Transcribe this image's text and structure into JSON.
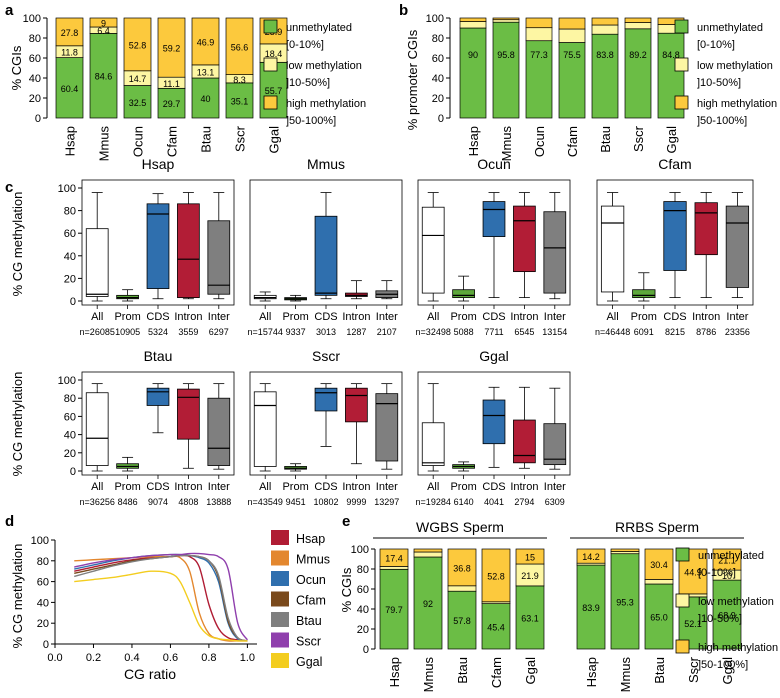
{
  "colors": {
    "unmethylated": "#6bbd45",
    "low": "#fdf6a3",
    "high": "#fcc93d",
    "all": "#ffffff",
    "prom": "#5ea83b",
    "cds": "#2f6fae",
    "intron": "#b21d36",
    "inter": "#7f7f7f",
    "line_colors": [
      "#b01c34",
      "#e3872e",
      "#2f6fae",
      "#7a4a1c",
      "#7f7f7f",
      "#8f3fad",
      "#f3cd1f"
    ]
  },
  "legend": {
    "unmethylated": "unmethylated",
    "unmethylated_range": "[0-10%]",
    "low": "low methylation",
    "low_range": "]10-50%]",
    "high": "high methylation",
    "high_range": "]50-100%]"
  },
  "chart_data": [
    {
      "panel": "a",
      "type": "bar",
      "stacked": true,
      "ylabel": "% CGIs",
      "ylim": [
        0,
        100
      ],
      "yticks": [
        0,
        20,
        40,
        60,
        80,
        100
      ],
      "categories": [
        "Hsap",
        "Mmus",
        "Ocun",
        "Cfam",
        "Btau",
        "Sscr",
        "Ggal"
      ],
      "series": [
        {
          "name": "unmethylated [0-10%]",
          "values": [
            60.4,
            84.6,
            32.5,
            29.7,
            40,
            35.1,
            55.7
          ]
        },
        {
          "name": "low methylation ]10-50%]",
          "values": [
            11.8,
            6.4,
            14.7,
            11.1,
            13.1,
            8.3,
            18.4
          ]
        },
        {
          "name": "high methylation ]50-100%]",
          "values": [
            27.8,
            9,
            52.8,
            59.2,
            46.9,
            56.6,
            25.9
          ]
        }
      ],
      "labels": [
        [
          "60.4",
          "11.8",
          "27.8"
        ],
        [
          "84.6",
          "6.4",
          "9"
        ],
        [
          "32.5",
          "14.7",
          "52.8"
        ],
        [
          "29.7",
          "11.1",
          "59.2"
        ],
        [
          "40",
          "13.1",
          "46.9"
        ],
        [
          "35.1",
          "8.3",
          "56.6"
        ],
        [
          "55.7",
          "18.4",
          "25.9"
        ]
      ]
    },
    {
      "panel": "b",
      "type": "bar",
      "stacked": true,
      "ylabel": "% promoter CGIs",
      "ylim": [
        0,
        100
      ],
      "yticks": [
        0,
        20,
        40,
        60,
        80,
        100
      ],
      "categories": [
        "Hsap",
        "Mmus",
        "Ocun",
        "Cfam",
        "Btau",
        "Sscr",
        "Ggal"
      ],
      "series": [
        {
          "name": "unmethylated [0-10%]",
          "values": [
            90,
            95.8,
            77.3,
            75.5,
            83.8,
            89.2,
            84.8
          ]
        },
        {
          "name": "low methylation ]10-50%]",
          "values": [
            6.5,
            2.5,
            13.0,
            13.5,
            9.2,
            6.3,
            8.7
          ]
        },
        {
          "name": "high methylation ]50-100%]",
          "values": [
            3.5,
            1.7,
            9.7,
            11.0,
            7.0,
            4.5,
            6.5
          ]
        }
      ],
      "labels": [
        [
          "90"
        ],
        [
          "95.8"
        ],
        [
          "77.3"
        ],
        [
          "75.5"
        ],
        [
          "83.8"
        ],
        [
          "89.2"
        ],
        [
          "84.8"
        ]
      ]
    },
    {
      "panel": "c",
      "type": "box",
      "ylabel": "% CG methylation",
      "ylim": [
        0,
        100
      ],
      "yticks": [
        0,
        20,
        40,
        60,
        80,
        100
      ],
      "categories": [
        "All",
        "Prom",
        "CDS",
        "Intron",
        "Inter"
      ],
      "species": [
        {
          "name": "Hsap",
          "n": [
            "n=26085",
            "10905",
            "5324",
            "3559",
            "6297"
          ],
          "boxes": [
            [
              0,
              4,
              6,
              64,
              96
            ],
            [
              0,
              2,
              3,
              5,
              10
            ],
            [
              2,
              11,
              77,
              86,
              95
            ],
            [
              2,
              3,
              37,
              86,
              96
            ],
            [
              2,
              6,
              14,
              71,
              96
            ]
          ]
        },
        {
          "name": "Mmus",
          "n": [
            "n=15744",
            "9337",
            "3013",
            "1287",
            "2107"
          ],
          "boxes": [
            [
              0,
              2,
              3,
              5,
              8
            ],
            [
              0,
              1,
              2,
              3,
              5
            ],
            [
              2,
              5,
              7,
              75,
              96
            ],
            [
              2,
              4,
              5,
              7,
              18
            ],
            [
              2,
              3,
              6,
              9,
              18
            ]
          ]
        },
        {
          "name": "Ocun",
          "n": [
            "n=32498",
            "5088",
            "7711",
            "6545",
            "13154"
          ],
          "boxes": [
            [
              0,
              7,
              58,
              83,
              96
            ],
            [
              0,
              3,
              5,
              10,
              22
            ],
            [
              3,
              57,
              81,
              88,
              96
            ],
            [
              3,
              26,
              71,
              84,
              96
            ],
            [
              2,
              7,
              47,
              79,
              96
            ]
          ]
        },
        {
          "name": "Cfam",
          "n": [
            "n=46448",
            "6091",
            "8215",
            "8786",
            "23356"
          ],
          "boxes": [
            [
              0,
              8,
              69,
              84,
              96
            ],
            [
              0,
              3,
              5,
              10,
              25
            ],
            [
              3,
              27,
              80,
              88,
              96
            ],
            [
              3,
              41,
              78,
              87,
              96
            ],
            [
              3,
              12,
              69,
              84,
              96
            ]
          ]
        }
      ]
    },
    {
      "panel": "c2",
      "type": "box",
      "ylabel": "% CG methylation",
      "ylim": [
        0,
        100
      ],
      "yticks": [
        0,
        20,
        40,
        60,
        80,
        100
      ],
      "categories": [
        "All",
        "Prom",
        "CDS",
        "Intron",
        "Inter"
      ],
      "species": [
        {
          "name": "Btau",
          "n": [
            "n=36256",
            "8486",
            "9074",
            "4808",
            "13888"
          ],
          "boxes": [
            [
              0,
              6,
              36,
              86,
              96
            ],
            [
              0,
              3,
              5,
              8,
              15
            ],
            [
              42,
              72,
              87,
              91,
              96
            ],
            [
              3,
              35,
              81,
              90,
              96
            ],
            [
              2,
              6,
              25,
              80,
              96
            ]
          ]
        },
        {
          "name": "Sscr",
          "n": [
            "n=43549",
            "9451",
            "10802",
            "9999",
            "13297"
          ],
          "boxes": [
            [
              0,
              5,
              72,
              87,
              96
            ],
            [
              0,
              2,
              3,
              5,
              8
            ],
            [
              27,
              66,
              86,
              91,
              96
            ],
            [
              8,
              54,
              83,
              91,
              96
            ],
            [
              2,
              11,
              74,
              85,
              96
            ]
          ]
        },
        {
          "name": "Ggal",
          "n": [
            "n=19284",
            "6140",
            "4041",
            "2794",
            "6309"
          ],
          "boxes": [
            [
              0,
              6,
              9,
              53,
              96
            ],
            [
              0,
              3,
              5,
              7,
              10
            ],
            [
              4,
              30,
              61,
              78,
              92
            ],
            [
              3,
              9,
              17,
              56,
              92
            ],
            [
              2,
              7,
              13,
              52,
              91
            ]
          ]
        }
      ]
    },
    {
      "panel": "d",
      "type": "line",
      "xlabel": "CG ratio",
      "ylabel": "% CG methylation",
      "xlim": [
        0,
        1.05
      ],
      "ylim": [
        0,
        100
      ],
      "xticks": [
        0,
        0.2,
        0.4,
        0.6,
        0.8,
        1
      ],
      "xtick_labels": [
        "0.0",
        "0.2",
        "0.4",
        "0.6",
        "0.8",
        "1.0"
      ],
      "yticks": [
        0,
        20,
        40,
        60,
        80,
        100
      ],
      "x": [
        0.1,
        0.2,
        0.3,
        0.4,
        0.5,
        0.6,
        0.65,
        0.7,
        0.75,
        0.8,
        0.85,
        0.9,
        0.95,
        1.0
      ],
      "series": [
        {
          "name": "Hsap",
          "values": [
            70,
            74,
            78,
            81,
            83,
            84,
            85,
            84,
            74,
            38,
            15,
            6,
            4,
            3
          ]
        },
        {
          "name": "Mmus",
          "values": [
            80,
            81,
            82,
            83,
            84,
            84,
            83,
            70,
            30,
            10,
            5,
            3,
            3,
            3
          ]
        },
        {
          "name": "Ocun",
          "values": [
            72,
            76,
            80,
            83,
            85,
            86,
            86,
            85,
            83,
            78,
            60,
            20,
            5,
            3
          ]
        },
        {
          "name": "Cfam",
          "values": [
            68,
            72,
            76,
            80,
            82,
            84,
            85,
            85,
            84,
            80,
            64,
            22,
            6,
            3
          ]
        },
        {
          "name": "Btau",
          "values": [
            65,
            70,
            75,
            79,
            82,
            84,
            85,
            85,
            84,
            80,
            66,
            25,
            6,
            3
          ]
        },
        {
          "name": "Sscr",
          "values": [
            74,
            78,
            81,
            83,
            85,
            86,
            86,
            87,
            87,
            86,
            84,
            72,
            20,
            4
          ]
        },
        {
          "name": "Ggal",
          "values": [
            60,
            62,
            64,
            67,
            70,
            68,
            60,
            40,
            18,
            8,
            5,
            4,
            3,
            3
          ]
        }
      ]
    },
    {
      "panel": "e",
      "type": "bar",
      "stacked": true,
      "ylabel": "% CGIs",
      "ylim": [
        0,
        100
      ],
      "yticks": [
        0,
        20,
        40,
        60,
        80,
        100
      ],
      "groups": [
        "WGBS Sperm",
        "RRBS Sperm"
      ],
      "categories": [
        "Hsap",
        "Mmus",
        "Btau",
        "Cfam",
        "Ggal",
        "Hsap",
        "Mmus",
        "Btau",
        "Sscr",
        "Ggal"
      ],
      "series": [
        {
          "name": "unmethylated [0-10%]",
          "values": [
            79.7,
            92,
            57.8,
            45.4,
            63.1,
            83.9,
            95.3,
            65.0,
            52.1,
            68.9
          ]
        },
        {
          "name": "low methylation ]10-50%]",
          "values": [
            2.9,
            5.0,
            5.4,
            1.8,
            21.9,
            1.9,
            2.2,
            4.6,
            3.0,
            10
          ]
        },
        {
          "name": "high methylation ]50-100%]",
          "values": [
            17.4,
            3.0,
            36.8,
            52.8,
            15,
            14.2,
            2.5,
            30.4,
            44.9,
            21.1
          ]
        }
      ],
      "labels": [
        [
          "79.7",
          "",
          "17.4"
        ],
        [
          "92",
          "",
          ""
        ],
        [
          "57.8",
          "",
          "36.8"
        ],
        [
          "45.4",
          "",
          "52.8"
        ],
        [
          "63.1",
          "21.9",
          "15"
        ],
        [
          "83.9",
          "",
          "14.2"
        ],
        [
          "95.3",
          "",
          ""
        ],
        [
          "65.0",
          "",
          "30.4"
        ],
        [
          "52.1",
          "",
          "44.9"
        ],
        [
          "68.9",
          "10",
          "21.1"
        ]
      ]
    }
  ]
}
